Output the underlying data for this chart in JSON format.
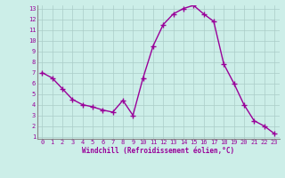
{
  "hours": [
    0,
    1,
    2,
    3,
    4,
    5,
    6,
    7,
    8,
    9,
    10,
    11,
    12,
    13,
    14,
    15,
    16,
    17,
    18,
    19,
    20,
    21,
    22,
    23
  ],
  "values": [
    7.0,
    6.5,
    5.5,
    4.5,
    4.0,
    3.8,
    3.5,
    3.3,
    4.4,
    3.0,
    6.5,
    9.5,
    11.5,
    12.5,
    13.0,
    13.3,
    12.5,
    11.8,
    7.8,
    6.0,
    4.0,
    2.5,
    2.0,
    1.3
  ],
  "line_color": "#990099",
  "marker_color": "#990099",
  "bg_color": "#cceee8",
  "grid_color": "#aaccc8",
  "xlabel": "Windchill (Refroidissement éolien,°C)",
  "xlabel_color": "#990099",
  "tick_color": "#990099",
  "axis_color": "#888888",
  "ylim": [
    1,
    13
  ],
  "xlim": [
    0,
    23
  ],
  "yticks": [
    1,
    2,
    3,
    4,
    5,
    6,
    7,
    8,
    9,
    10,
    11,
    12,
    13
  ],
  "xticks": [
    0,
    1,
    2,
    3,
    4,
    5,
    6,
    7,
    8,
    9,
    10,
    11,
    12,
    13,
    14,
    15,
    16,
    17,
    18,
    19,
    20,
    21,
    22,
    23
  ],
  "marker_size": 4,
  "line_width": 1.0,
  "tick_fontsize": 5.0,
  "xlabel_fontsize": 5.5
}
